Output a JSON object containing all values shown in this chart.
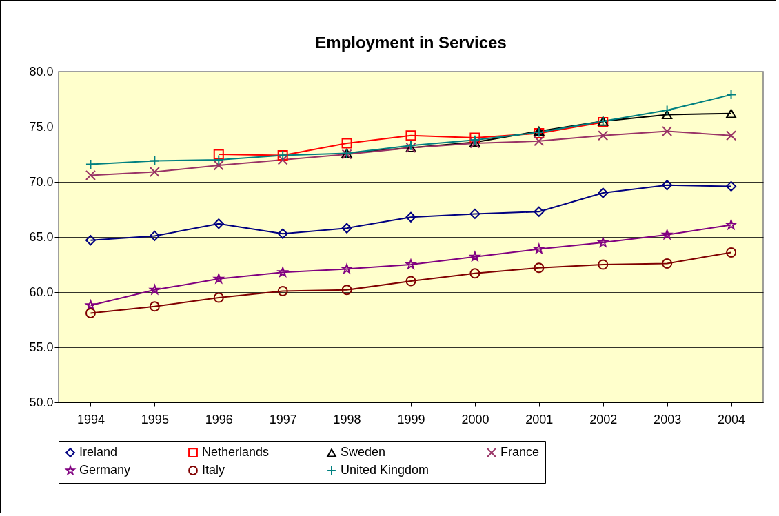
{
  "chart_data": {
    "type": "line",
    "title": "Employment in Services",
    "categories": [
      "1994",
      "1995",
      "1996",
      "1997",
      "1998",
      "1999",
      "2000",
      "2001",
      "2002",
      "2003",
      "2004"
    ],
    "ylim": [
      50,
      80
    ],
    "yticks": [
      {
        "value": 50,
        "label": "50.0"
      },
      {
        "value": 55,
        "label": "55.0"
      },
      {
        "value": 60,
        "label": "60.0"
      },
      {
        "value": 65,
        "label": "65.0"
      },
      {
        "value": 70,
        "label": "70.0"
      },
      {
        "value": 75,
        "label": "75.0"
      },
      {
        "value": 80,
        "label": "80.0"
      }
    ],
    "grid": "y",
    "legend": "bottom",
    "series": [
      {
        "name": "Ireland",
        "color": "#000080",
        "marker": "diamond",
        "values": [
          64.7,
          65.1,
          66.2,
          65.3,
          65.8,
          66.8,
          67.1,
          67.3,
          69.0,
          69.7,
          69.6
        ]
      },
      {
        "name": "Netherlands",
        "color": "#ff0000",
        "marker": "square",
        "values": [
          null,
          null,
          72.5,
          72.4,
          73.5,
          74.2,
          74.0,
          74.4,
          75.4,
          null,
          null
        ]
      },
      {
        "name": "Sweden",
        "color": "#000000",
        "marker": "triangle",
        "values": [
          null,
          null,
          null,
          null,
          72.6,
          73.1,
          73.6,
          74.6,
          75.5,
          76.1,
          76.2
        ]
      },
      {
        "name": "France",
        "color": "#993366",
        "marker": "cross",
        "values": [
          70.6,
          70.9,
          71.5,
          72.0,
          72.5,
          73.1,
          73.5,
          73.7,
          74.2,
          74.6,
          74.2
        ]
      },
      {
        "name": "Germany",
        "color": "#800080",
        "marker": "star",
        "values": [
          58.8,
          60.2,
          61.2,
          61.8,
          62.1,
          62.5,
          63.2,
          63.9,
          64.5,
          65.2,
          66.1
        ]
      },
      {
        "name": "Italy",
        "color": "#800000",
        "marker": "circle",
        "values": [
          58.1,
          58.7,
          59.5,
          60.1,
          60.2,
          61.0,
          61.7,
          62.2,
          62.5,
          62.6,
          63.6
        ]
      },
      {
        "name": "United Kingdom",
        "color": "#008080",
        "marker": "plus",
        "values": [
          71.6,
          71.9,
          72.0,
          72.4,
          72.6,
          73.3,
          73.8,
          74.5,
          75.5,
          76.5,
          77.9
        ]
      }
    ]
  }
}
